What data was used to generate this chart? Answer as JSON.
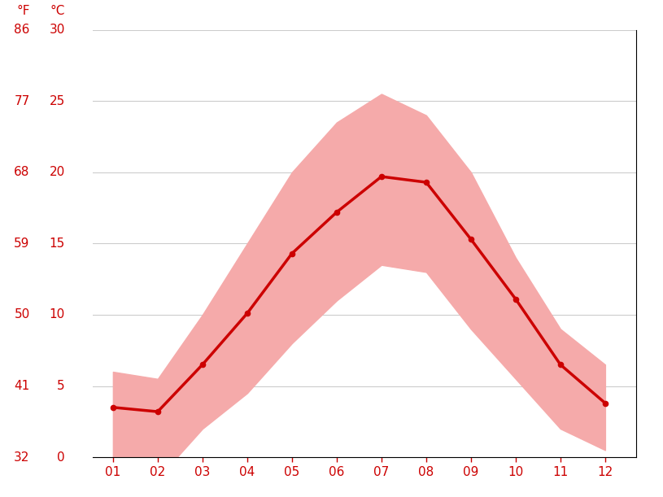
{
  "months": [
    1,
    2,
    3,
    4,
    5,
    6,
    7,
    8,
    9,
    10,
    11,
    12
  ],
  "month_labels": [
    "01",
    "02",
    "03",
    "04",
    "05",
    "06",
    "07",
    "08",
    "09",
    "10",
    "11",
    "12"
  ],
  "mean_temp": [
    3.5,
    3.2,
    6.5,
    10.1,
    14.3,
    17.2,
    19.7,
    19.3,
    15.3,
    11.1,
    6.5,
    3.8
  ],
  "max_temp": [
    6.0,
    5.5,
    10.0,
    15.0,
    20.0,
    23.5,
    25.5,
    24.0,
    20.0,
    14.0,
    9.0,
    6.5
  ],
  "min_temp": [
    -1.0,
    -1.5,
    2.0,
    4.5,
    8.0,
    11.0,
    13.5,
    13.0,
    9.0,
    5.5,
    2.0,
    0.5
  ],
  "ylim": [
    0,
    30
  ],
  "xlim_left": 0.55,
  "xlim_right": 12.7,
  "yticks_c": [
    0,
    5,
    10,
    15,
    20,
    25,
    30
  ],
  "yticks_f": [
    32,
    41,
    50,
    59,
    68,
    77,
    86
  ],
  "band_color": "#F5AAAA",
  "line_color": "#CC0000",
  "marker_color": "#CC0000",
  "bg_color": "#ffffff",
  "grid_color": "#cccccc",
  "label_color": "#CC0000",
  "label_F": "°F",
  "label_C": "°C"
}
